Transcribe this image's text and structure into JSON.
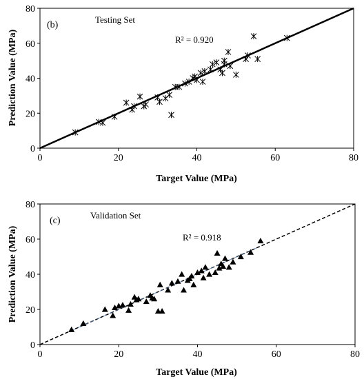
{
  "chart_data": [
    {
      "type": "scatter",
      "panel_label": "(b)",
      "title": "Testing Set",
      "xlabel": "Target Value (MPa)",
      "ylabel": "Prediction Value (MPa)",
      "xlim": [
        0,
        80
      ],
      "ylim": [
        0,
        80
      ],
      "xticks": [
        "0",
        "20",
        "40",
        "60",
        "80"
      ],
      "yticks": [
        "0",
        "20",
        "40",
        "60",
        "80"
      ],
      "annotation": "R² = 0.920",
      "marker": "asterisk",
      "fit_line": {
        "style": "solid",
        "x": [
          0,
          80
        ],
        "y": [
          0,
          80
        ]
      },
      "points": [
        [
          9,
          9
        ],
        [
          15,
          15
        ],
        [
          16,
          14.5
        ],
        [
          19,
          18
        ],
        [
          22,
          26
        ],
        [
          23.5,
          22
        ],
        [
          24,
          24
        ],
        [
          25.5,
          29.5
        ],
        [
          26.5,
          24
        ],
        [
          27,
          25
        ],
        [
          30,
          29
        ],
        [
          30.5,
          26.5
        ],
        [
          32,
          28.5
        ],
        [
          33,
          30.5
        ],
        [
          33.5,
          19
        ],
        [
          34.5,
          35
        ],
        [
          35.5,
          35
        ],
        [
          37,
          37
        ],
        [
          38,
          38
        ],
        [
          39,
          40
        ],
        [
          39.5,
          41
        ],
        [
          40,
          39
        ],
        [
          41,
          43
        ],
        [
          41.5,
          38
        ],
        [
          42,
          44
        ],
        [
          43.5,
          45
        ],
        [
          44,
          48
        ],
        [
          45,
          49
        ],
        [
          46,
          45
        ],
        [
          46.5,
          43
        ],
        [
          47,
          48
        ],
        [
          47,
          50
        ],
        [
          48,
          55
        ],
        [
          48.5,
          47
        ],
        [
          50,
          42
        ],
        [
          52.5,
          51
        ],
        [
          53,
          53
        ],
        [
          54.5,
          64
        ],
        [
          55.5,
          51
        ],
        [
          63,
          63
        ]
      ]
    },
    {
      "type": "scatter",
      "panel_label": "(c)",
      "title": "Validation Set",
      "xlabel": "Target Value (MPa)",
      "ylabel": "Prediction Value (MPa)",
      "xlim": [
        0,
        80
      ],
      "ylim": [
        0,
        80
      ],
      "xticks": [
        "0",
        "20",
        "40",
        "60",
        "80"
      ],
      "yticks": [
        "0",
        "20",
        "40",
        "60",
        "80"
      ],
      "annotation": "R² = 0.918",
      "marker": "triangle",
      "fit_line": {
        "style": "dashed",
        "x": [
          0,
          80
        ],
        "y": [
          0,
          80
        ]
      },
      "points": [
        [
          8,
          8.5
        ],
        [
          11,
          12
        ],
        [
          16.5,
          20
        ],
        [
          18.5,
          16.5
        ],
        [
          19,
          21
        ],
        [
          20,
          22
        ],
        [
          21,
          22.5
        ],
        [
          22.5,
          19.5
        ],
        [
          23,
          23
        ],
        [
          24,
          27
        ],
        [
          24.5,
          25.5
        ],
        [
          25,
          26
        ],
        [
          27,
          24.5
        ],
        [
          28,
          28
        ],
        [
          28.5,
          26.5
        ],
        [
          29,
          26
        ],
        [
          30,
          19
        ],
        [
          30.5,
          34
        ],
        [
          31,
          19
        ],
        [
          32.5,
          31
        ],
        [
          33.5,
          35
        ],
        [
          35,
          36
        ],
        [
          36,
          40
        ],
        [
          36.5,
          31
        ],
        [
          37.5,
          36.5
        ],
        [
          38,
          37.5
        ],
        [
          38.5,
          39
        ],
        [
          39,
          34
        ],
        [
          40,
          41
        ],
        [
          41,
          42
        ],
        [
          41.5,
          38
        ],
        [
          42,
          44
        ],
        [
          43,
          40
        ],
        [
          44.5,
          41
        ],
        [
          45,
          52
        ],
        [
          45.5,
          43.5
        ],
        [
          46,
          46
        ],
        [
          46.5,
          44.5
        ],
        [
          47,
          49
        ],
        [
          48,
          44
        ],
        [
          49,
          47
        ],
        [
          51,
          50
        ],
        [
          53.5,
          52.5
        ],
        [
          56,
          59
        ]
      ]
    }
  ]
}
